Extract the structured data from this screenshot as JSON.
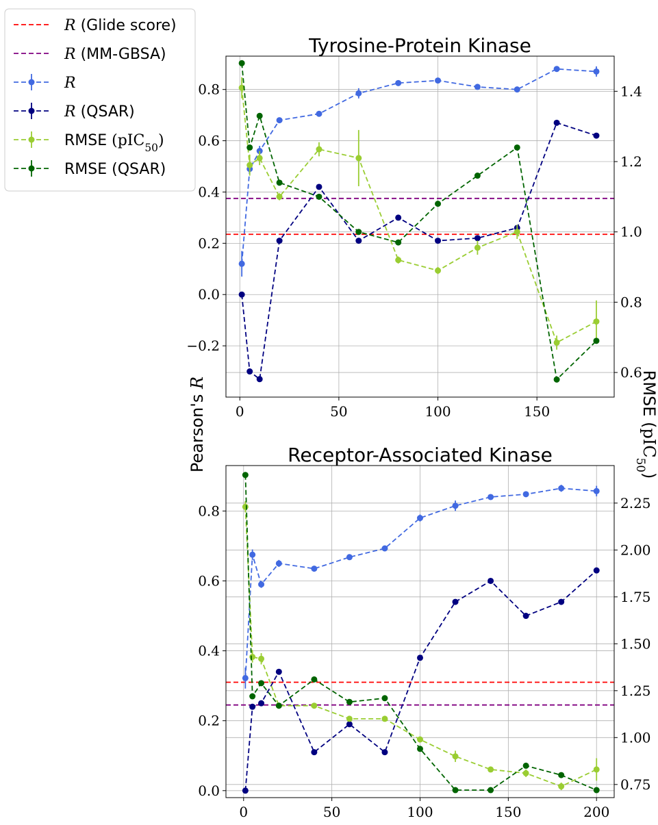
{
  "legend": {
    "entries": [
      {
        "key": "glide",
        "prefix": "R",
        "suffix": " (Glide score)",
        "color": "#ff0000",
        "style": "dashed"
      },
      {
        "key": "mmgbsa",
        "prefix": "R",
        "suffix": " (MM-GBSA)",
        "color": "#800080",
        "style": "dashed"
      },
      {
        "key": "r",
        "prefix": "R",
        "suffix": "",
        "color": "#4169e1",
        "style": "dashed-marker"
      },
      {
        "key": "r_qsar",
        "prefix": "R",
        "suffix": " (QSAR)",
        "color": "#000080",
        "style": "dashed-marker"
      },
      {
        "key": "rmse",
        "prefix": "RMSE ",
        "suffix": "",
        "math": "(pIC50)",
        "color": "#9acd32",
        "style": "dashed-marker"
      },
      {
        "key": "rmse_qsar",
        "prefix": "RMSE (QSAR)",
        "suffix": "",
        "color": "#006400",
        "style": "dashed-marker"
      }
    ]
  },
  "y_left_label": "Pearson's R",
  "y_right_label": "RMSE (pIC50)",
  "colors": {
    "r": "#4169e1",
    "r_qsar": "#000080",
    "rmse": "#9acd32",
    "rmse_qsar": "#006400",
    "glide": "#ff0000",
    "mmgbsa": "#800080"
  },
  "chart_data": [
    {
      "type": "line",
      "title": "Tyrosine-Protein Kinase",
      "xlim": [
        -7,
        189
      ],
      "ylim_left": [
        -0.4,
        0.93
      ],
      "ylim_right": [
        0.53,
        1.5
      ],
      "xticks": [
        0,
        50,
        100,
        150
      ],
      "yticks_left": [
        -0.2,
        0.0,
        0.2,
        0.4,
        0.6,
        0.8
      ],
      "yticks_right": [
        0.6,
        0.8,
        1.0,
        1.2,
        1.4
      ],
      "hlines": {
        "glide": 0.235,
        "mmgbsa": 0.375
      },
      "series": [
        {
          "key": "r",
          "axis": "left",
          "x": [
            1,
            5,
            10,
            20,
            40,
            60,
            80,
            100,
            120,
            140,
            160,
            180
          ],
          "y": [
            0.12,
            0.49,
            0.56,
            0.68,
            0.705,
            0.785,
            0.825,
            0.835,
            0.81,
            0.8,
            0.88,
            0.87
          ],
          "err": [
            0.05,
            0.02,
            0.02,
            0.01,
            0.01,
            0.02,
            0.01,
            0.01,
            0.01,
            0.01,
            0.01,
            0.02
          ]
        },
        {
          "key": "r_qsar",
          "axis": "left",
          "x": [
            1,
            5,
            10,
            20,
            40,
            60,
            80,
            100,
            120,
            140,
            160,
            180
          ],
          "y": [
            0.0,
            -0.3,
            -0.33,
            0.21,
            0.42,
            0.21,
            0.3,
            0.21,
            0.22,
            0.26,
            0.67,
            0.62
          ]
        },
        {
          "key": "rmse",
          "axis": "right",
          "x": [
            1,
            5,
            10,
            20,
            40,
            60,
            80,
            100,
            120,
            140,
            160,
            180
          ],
          "y": [
            1.41,
            1.19,
            1.21,
            1.1,
            1.235,
            1.21,
            0.92,
            0.89,
            0.955,
            1.0,
            0.685,
            0.745
          ],
          "err": [
            0.03,
            0.03,
            0.02,
            0.01,
            0.02,
            0.08,
            0.01,
            0.01,
            0.02,
            0.02,
            0.02,
            0.06
          ]
        },
        {
          "key": "rmse_qsar",
          "axis": "right",
          "x": [
            1,
            5,
            10,
            20,
            40,
            60,
            80,
            100,
            120,
            140,
            160,
            180
          ],
          "y": [
            1.48,
            1.24,
            1.33,
            1.14,
            1.1,
            1.0,
            0.97,
            1.08,
            1.16,
            1.24,
            0.58,
            0.69
          ]
        }
      ]
    },
    {
      "type": "line",
      "title": "Receptor-Associated Kinase",
      "xlim": [
        -10,
        210
      ],
      "ylim_left": [
        -0.02,
        0.93
      ],
      "ylim_right": [
        0.68,
        2.45
      ],
      "xticks": [
        0,
        50,
        100,
        150,
        200
      ],
      "yticks_left": [
        0.0,
        0.2,
        0.4,
        0.6,
        0.8
      ],
      "yticks_right": [
        0.75,
        1.0,
        1.25,
        1.5,
        1.75,
        2.0,
        2.25
      ],
      "hlines": {
        "glide": 0.31,
        "mmgbsa": 0.245
      },
      "series": [
        {
          "key": "r",
          "axis": "left",
          "x": [
            1,
            5,
            10,
            20,
            40,
            60,
            80,
            100,
            120,
            140,
            160,
            180,
            200
          ],
          "y": [
            0.322,
            0.675,
            0.59,
            0.65,
            0.635,
            0.668,
            0.693,
            0.78,
            0.815,
            0.84,
            0.848,
            0.865,
            0.857
          ],
          "err": [
            0.03,
            0.015,
            0.01,
            0.01,
            0.005,
            0.005,
            0.005,
            0.01,
            0.015,
            0.005,
            0.005,
            0.01,
            0.015
          ]
        },
        {
          "key": "r_qsar",
          "axis": "left",
          "x": [
            1,
            5,
            10,
            20,
            40,
            60,
            80,
            100,
            120,
            140,
            160,
            180,
            200
          ],
          "y": [
            0.0,
            0.24,
            0.25,
            0.34,
            0.11,
            0.19,
            0.11,
            0.38,
            0.54,
            0.6,
            0.5,
            0.54,
            0.63
          ]
        },
        {
          "key": "rmse",
          "axis": "right",
          "x": [
            1,
            5,
            10,
            20,
            40,
            60,
            80,
            100,
            120,
            140,
            160,
            180,
            200
          ],
          "y": [
            2.23,
            1.43,
            1.42,
            1.17,
            1.17,
            1.1,
            1.1,
            0.99,
            0.9,
            0.83,
            0.81,
            0.74,
            0.83
          ],
          "err": [
            0.03,
            0.03,
            0.03,
            0.01,
            0.01,
            0.01,
            0.01,
            0.01,
            0.03,
            0.01,
            0.02,
            0.02,
            0.06
          ]
        },
        {
          "key": "rmse_qsar",
          "axis": "right",
          "x": [
            1,
            5,
            10,
            20,
            40,
            60,
            80,
            100,
            120,
            140,
            160,
            180,
            200
          ],
          "y": [
            2.4,
            1.22,
            1.29,
            1.17,
            1.31,
            1.19,
            1.21,
            0.94,
            0.72,
            0.72,
            0.85,
            0.8,
            0.72
          ]
        }
      ]
    }
  ]
}
